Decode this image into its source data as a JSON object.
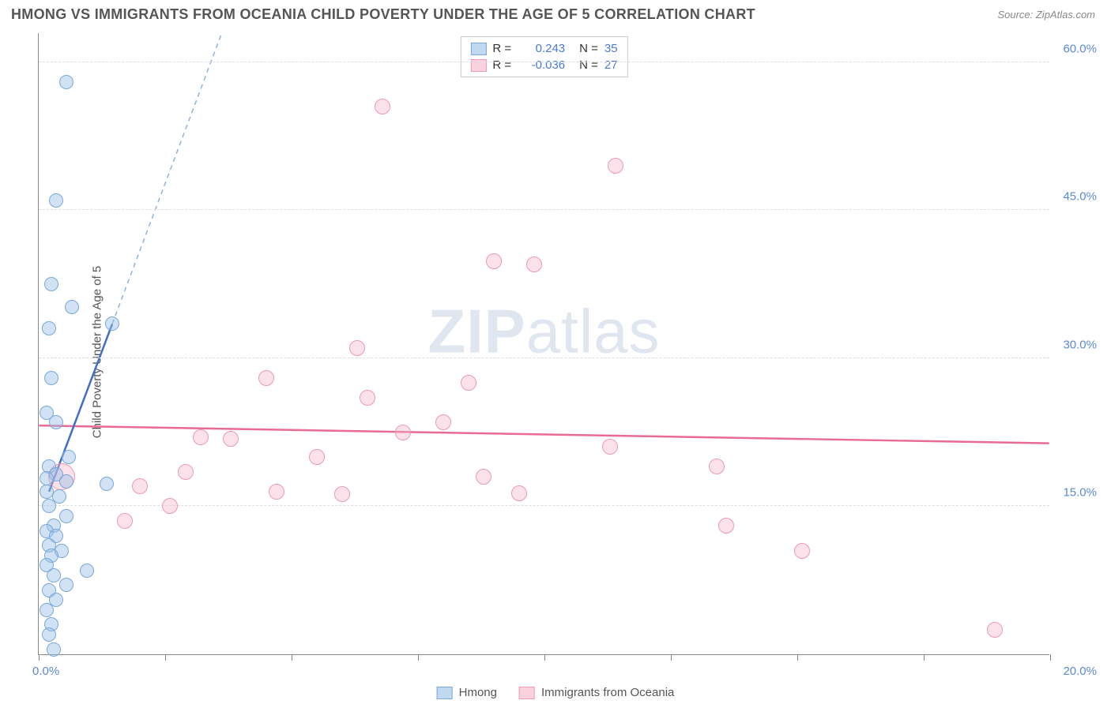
{
  "header": {
    "title": "HMONG VS IMMIGRANTS FROM OCEANIA CHILD POVERTY UNDER THE AGE OF 5 CORRELATION CHART",
    "source": "Source: ZipAtlas.com"
  },
  "watermark": {
    "zip": "ZIP",
    "atlas": "atlas"
  },
  "chart": {
    "type": "scatter",
    "y_axis_title": "Child Poverty Under the Age of 5",
    "xlim": [
      0,
      20
    ],
    "ylim": [
      0,
      63
    ],
    "x_ticks": [
      0,
      2.5,
      5,
      7.5,
      10,
      12.5,
      15,
      17.5,
      20
    ],
    "x_tick_labels": {
      "first": "0.0%",
      "last": "20.0%"
    },
    "y_gridlines": [
      15,
      30,
      45,
      60
    ],
    "y_tick_labels": [
      "15.0%",
      "30.0%",
      "45.0%",
      "60.0%"
    ],
    "grid_color": "#dddddd",
    "axis_color": "#888888",
    "background_color": "#ffffff",
    "series": {
      "blue": {
        "label": "Hmong",
        "fill": "rgba(150,190,230,0.45)",
        "stroke": "#7aa8d8",
        "marker_radius": 9,
        "R": "0.243",
        "N": "35",
        "trend": {
          "x1": 0.2,
          "y1": 16.5,
          "x2": 1.45,
          "y2": 33.5,
          "dashed_extend_to_top": true,
          "color": "#3f6fc5",
          "width": 2.5
        },
        "points": [
          {
            "x": 0.55,
            "y": 58.0
          },
          {
            "x": 0.35,
            "y": 46.0
          },
          {
            "x": 0.25,
            "y": 37.5
          },
          {
            "x": 0.65,
            "y": 35.2
          },
          {
            "x": 1.45,
            "y": 33.5
          },
          {
            "x": 0.2,
            "y": 33.0
          },
          {
            "x": 0.25,
            "y": 28.0
          },
          {
            "x": 0.35,
            "y": 23.5
          },
          {
            "x": 0.15,
            "y": 24.5
          },
          {
            "x": 0.6,
            "y": 20.0
          },
          {
            "x": 0.2,
            "y": 19.0
          },
          {
            "x": 0.35,
            "y": 18.2
          },
          {
            "x": 0.15,
            "y": 17.8
          },
          {
            "x": 0.55,
            "y": 17.5
          },
          {
            "x": 1.35,
            "y": 17.3
          },
          {
            "x": 0.15,
            "y": 16.5
          },
          {
            "x": 0.4,
            "y": 16.0
          },
          {
            "x": 0.2,
            "y": 15.0
          },
          {
            "x": 0.55,
            "y": 14.0
          },
          {
            "x": 0.3,
            "y": 13.0
          },
          {
            "x": 0.15,
            "y": 12.5
          },
          {
            "x": 0.35,
            "y": 12.0
          },
          {
            "x": 0.2,
            "y": 11.0
          },
          {
            "x": 0.45,
            "y": 10.5
          },
          {
            "x": 0.25,
            "y": 10.0
          },
          {
            "x": 0.15,
            "y": 9.0
          },
          {
            "x": 0.95,
            "y": 8.5
          },
          {
            "x": 0.3,
            "y": 8.0
          },
          {
            "x": 0.55,
            "y": 7.0
          },
          {
            "x": 0.2,
            "y": 6.5
          },
          {
            "x": 0.35,
            "y": 5.5
          },
          {
            "x": 0.15,
            "y": 4.5
          },
          {
            "x": 0.25,
            "y": 3.0
          },
          {
            "x": 0.2,
            "y": 2.0
          },
          {
            "x": 0.3,
            "y": 0.5
          }
        ]
      },
      "pink": {
        "label": "Immigrants from Oceania",
        "fill": "rgba(245,180,200,0.4)",
        "stroke": "#ec9ab5",
        "marker_radius": 9,
        "R": "-0.036",
        "N": "27",
        "trend": {
          "x1": 0,
          "y1": 23.2,
          "x2": 20,
          "y2": 21.4,
          "color": "#e96a95",
          "width": 2.5
        },
        "points": [
          {
            "x": 6.8,
            "y": 55.5,
            "r": 10
          },
          {
            "x": 11.4,
            "y": 49.5,
            "r": 10
          },
          {
            "x": 9.0,
            "y": 39.8,
            "r": 10
          },
          {
            "x": 9.8,
            "y": 39.5,
            "r": 10
          },
          {
            "x": 6.3,
            "y": 31.0,
            "r": 10
          },
          {
            "x": 4.5,
            "y": 28.0,
            "r": 10
          },
          {
            "x": 8.5,
            "y": 27.5,
            "r": 10
          },
          {
            "x": 6.5,
            "y": 26.0,
            "r": 10
          },
          {
            "x": 8.0,
            "y": 23.5,
            "r": 10
          },
          {
            "x": 3.2,
            "y": 22.0,
            "r": 10
          },
          {
            "x": 3.8,
            "y": 21.8,
            "r": 10
          },
          {
            "x": 11.3,
            "y": 21.0,
            "r": 10
          },
          {
            "x": 0.45,
            "y": 18.0,
            "r": 17
          },
          {
            "x": 2.9,
            "y": 18.5,
            "r": 10
          },
          {
            "x": 13.4,
            "y": 19.0,
            "r": 10
          },
          {
            "x": 8.8,
            "y": 18.0,
            "r": 10
          },
          {
            "x": 2.0,
            "y": 17.0,
            "r": 10
          },
          {
            "x": 4.7,
            "y": 16.5,
            "r": 10
          },
          {
            "x": 6.0,
            "y": 16.2,
            "r": 10
          },
          {
            "x": 9.5,
            "y": 16.3,
            "r": 10
          },
          {
            "x": 2.6,
            "y": 15.0,
            "r": 10
          },
          {
            "x": 1.7,
            "y": 13.5,
            "r": 10
          },
          {
            "x": 13.6,
            "y": 13.0,
            "r": 10
          },
          {
            "x": 15.1,
            "y": 10.5,
            "r": 10
          },
          {
            "x": 18.9,
            "y": 2.5,
            "r": 10
          },
          {
            "x": 5.5,
            "y": 20.0,
            "r": 10
          },
          {
            "x": 7.2,
            "y": 22.5,
            "r": 10
          }
        ]
      }
    }
  },
  "legend_bottom": {
    "items": [
      {
        "label": "Hmong",
        "swatch": "blue"
      },
      {
        "label": "Immigrants from Oceania",
        "swatch": "pink"
      }
    ]
  }
}
